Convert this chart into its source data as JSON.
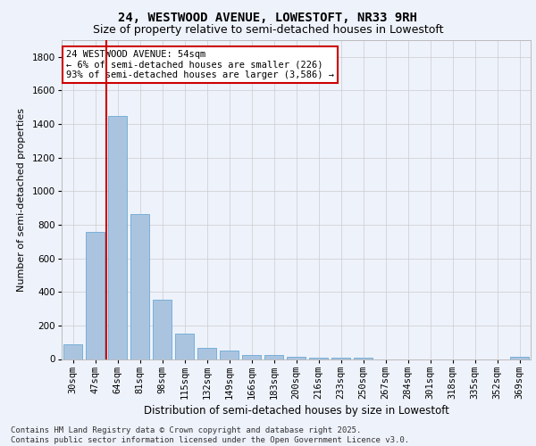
{
  "title_line1": "24, WESTWOOD AVENUE, LOWESTOFT, NR33 9RH",
  "title_line2": "Size of property relative to semi-detached houses in Lowestoft",
  "xlabel": "Distribution of semi-detached houses by size in Lowestoft",
  "ylabel": "Number of semi-detached properties",
  "categories": [
    "30sqm",
    "47sqm",
    "64sqm",
    "81sqm",
    "98sqm",
    "115sqm",
    "132sqm",
    "149sqm",
    "166sqm",
    "183sqm",
    "200sqm",
    "216sqm",
    "233sqm",
    "250sqm",
    "267sqm",
    "284sqm",
    "301sqm",
    "318sqm",
    "335sqm",
    "352sqm",
    "369sqm"
  ],
  "values": [
    88,
    755,
    1450,
    865,
    355,
    150,
    68,
    48,
    25,
    22,
    14,
    10,
    10,
    8,
    0,
    0,
    0,
    0,
    0,
    0,
    14
  ],
  "bar_color": "#aac4e0",
  "bar_edge_color": "#6aaad4",
  "property_line_x": 1.5,
  "annotation_text": "24 WESTWOOD AVENUE: 54sqm\n← 6% of semi-detached houses are smaller (226)\n93% of semi-detached houses are larger (3,586) →",
  "annotation_box_color": "#ffffff",
  "annotation_box_edge": "#cc0000",
  "vline_color": "#cc0000",
  "ylim": [
    0,
    1900
  ],
  "yticks": [
    0,
    200,
    400,
    600,
    800,
    1000,
    1200,
    1400,
    1600,
    1800
  ],
  "background_color": "#eef2fb",
  "grid_color": "#cccccc",
  "footer_text": "Contains HM Land Registry data © Crown copyright and database right 2025.\nContains public sector information licensed under the Open Government Licence v3.0.",
  "title_fontsize": 10,
  "subtitle_fontsize": 9,
  "xlabel_fontsize": 8.5,
  "ylabel_fontsize": 8,
  "tick_fontsize": 7.5,
  "annotation_fontsize": 7.5,
  "footer_fontsize": 6.5
}
